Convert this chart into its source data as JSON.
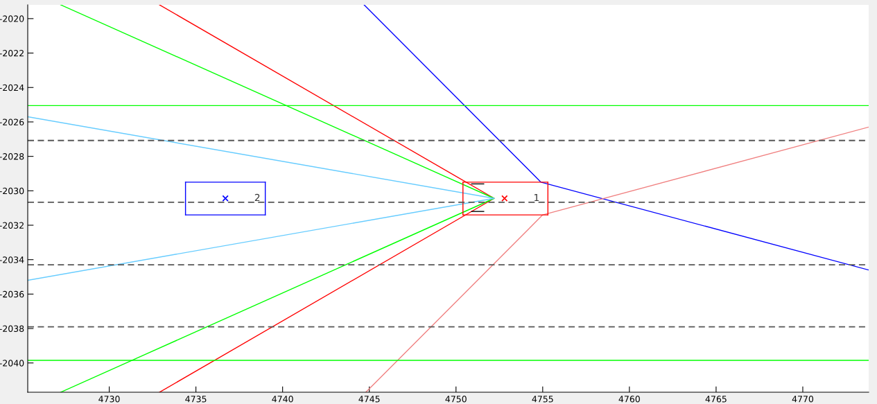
{
  "chart_data": {
    "type": "line",
    "xlim": [
      4725.3,
      4773.8
    ],
    "ylim": [
      -2041.7,
      -2019.2
    ],
    "xticks": [
      4730,
      4735,
      4740,
      4745,
      4750,
      4755,
      4760,
      4765,
      4770
    ],
    "yticks": [
      -2040,
      -2038,
      -2036,
      -2034,
      -2032,
      -2030,
      -2028,
      -2026,
      -2024,
      -2022,
      -2020
    ],
    "series": [
      {
        "color": "#0000ff",
        "x": [
          4744.7,
          4754.9,
          4773.8
        ],
        "values": [
          -2019.2,
          -2029.5,
          -2034.6
        ]
      },
      {
        "color": "#f08080",
        "x": [
          4744.8,
          4755.0,
          4773.8
        ],
        "values": [
          -2041.7,
          -2031.4,
          -2026.3
        ]
      },
      {
        "color": "#ff0000",
        "x": [
          4732.9,
          4752.2,
          4732.9
        ],
        "values": [
          -2019.2,
          -2030.44,
          -2041.7
        ]
      },
      {
        "color": "#00ff00",
        "x": [
          4727.2,
          4752.2,
          4727.2
        ],
        "values": [
          -2019.2,
          -2030.44,
          -2041.7
        ]
      },
      {
        "color": "#66ccff",
        "x": [
          4725.3,
          4752.2,
          4725.3
        ],
        "values": [
          -2025.7,
          -2030.44,
          -2035.2
        ]
      },
      {
        "color": "#ff0000",
        "x": [
          4750.4,
          4755.3
        ],
        "values": [
          -2029.5,
          -2029.5
        ]
      },
      {
        "color": "#ff0000",
        "x": [
          4750.4,
          4755.3
        ],
        "values": [
          -2031.4,
          -2031.4
        ]
      },
      {
        "color": "#ff0000",
        "x": [
          4750.4,
          4750.4
        ],
        "values": [
          -2029.5,
          -2031.4
        ]
      },
      {
        "color": "#ff0000",
        "x": [
          4755.3,
          4755.3
        ],
        "values": [
          -2029.5,
          -2031.4
        ]
      },
      {
        "color": "#0000ff",
        "x": [
          4734.4,
          4739.0
        ],
        "values": [
          -2029.5,
          -2029.5
        ]
      },
      {
        "color": "#0000ff",
        "x": [
          4734.4,
          4739.0
        ],
        "values": [
          -2031.4,
          -2031.4
        ]
      },
      {
        "color": "#0000ff",
        "x": [
          4734.4,
          4734.4
        ],
        "values": [
          -2029.5,
          -2031.4
        ]
      },
      {
        "color": "#0000ff",
        "x": [
          4739.0,
          4739.0
        ],
        "values": [
          -2029.5,
          -2031.4
        ]
      },
      {
        "color": "#000000",
        "x": [
          4750.9,
          4751.6
        ],
        "values": [
          -2029.6,
          -2029.6
        ]
      },
      {
        "color": "#000000",
        "x": [
          4750.9,
          4751.6
        ],
        "values": [
          -2031.2,
          -2031.2
        ]
      },
      {
        "type": "scatter",
        "marker": "cross",
        "name": "1",
        "color": "#ff0000",
        "x": [
          4752.8
        ],
        "values": [
          -2030.44
        ]
      },
      {
        "type": "scatter",
        "marker": "cross",
        "name": "2",
        "color": "#0000ff",
        "x": [
          4736.7
        ],
        "values": [
          -2030.44
        ]
      }
    ],
    "ref_lines": [
      {
        "axis": "y",
        "value": -2025.05,
        "color": "#00ff00",
        "line_style": "solid"
      },
      {
        "axis": "y",
        "value": -2039.85,
        "color": "#00ff00",
        "line_style": "solid"
      },
      {
        "axis": "y",
        "value": -2027.08,
        "color": "#555555",
        "line_style": "dashed"
      },
      {
        "axis": "y",
        "value": -2030.67,
        "color": "#555555",
        "line_style": "dashed"
      },
      {
        "axis": "y",
        "value": -2034.3,
        "color": "#555555",
        "line_style": "dashed"
      },
      {
        "axis": "y",
        "value": -2037.9,
        "color": "#555555",
        "line_style": "dashed"
      }
    ]
  }
}
